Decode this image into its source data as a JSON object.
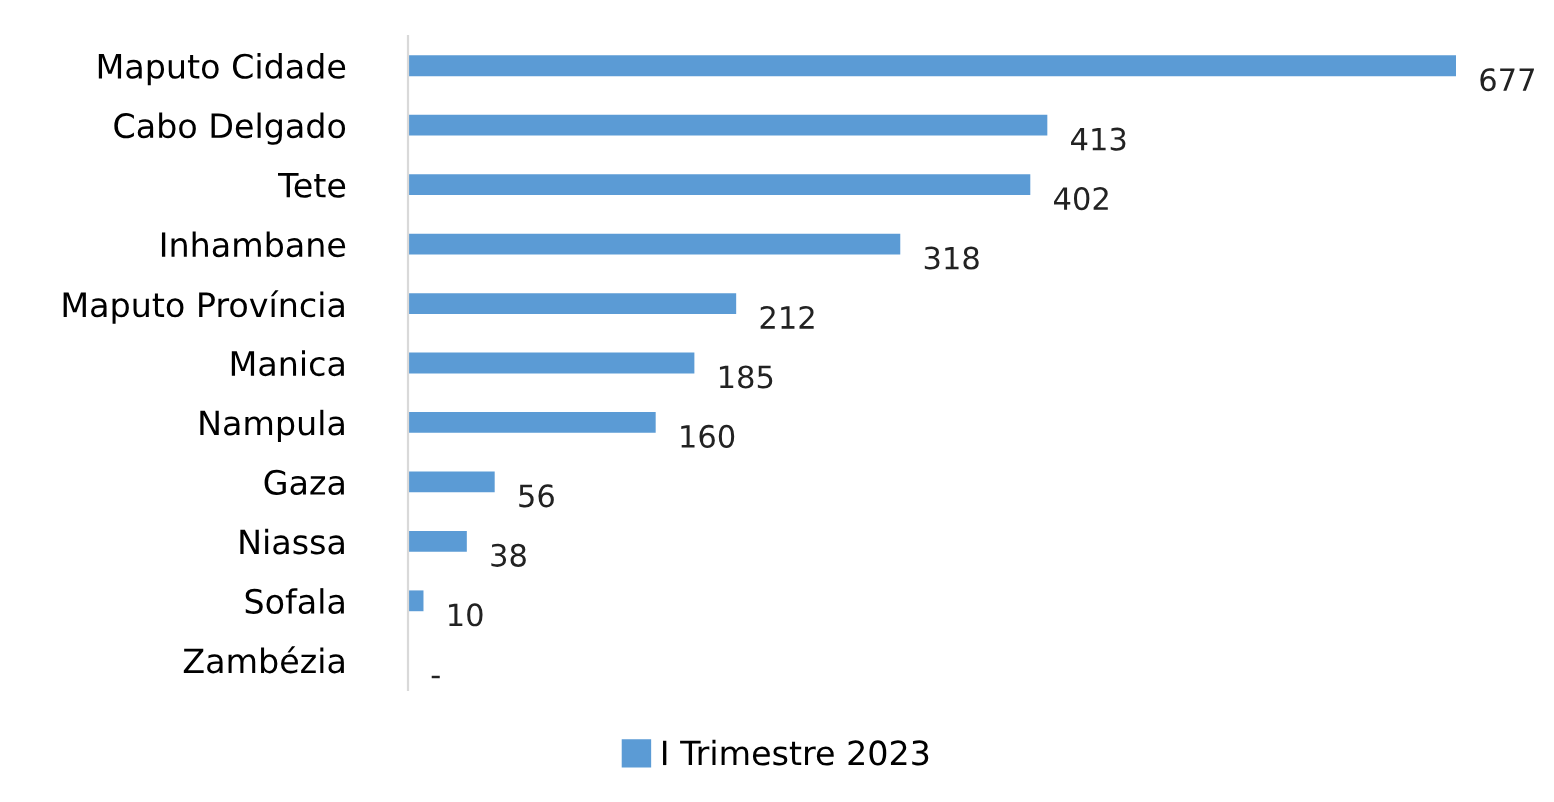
{
  "chart_data": {
    "type": "bar",
    "orientation": "horizontal",
    "categories": [
      "Maputo Cidade",
      "Cabo Delgado",
      "Tete",
      "Inhambane",
      "Maputo Província",
      "Manica",
      "Nampula",
      "Gaza",
      "Niassa",
      "Sofala",
      "Zambézia"
    ],
    "series": [
      {
        "name": "I Trimestre 2023",
        "color": "#5b9bd5",
        "values": [
          677,
          413,
          402,
          318,
          212,
          185,
          160,
          56,
          38,
          10,
          0
        ],
        "value_labels": [
          "677",
          "413",
          "402",
          "318",
          "212",
          "185",
          "160",
          "56",
          "38",
          "10",
          "-"
        ]
      }
    ],
    "legend": "bottom",
    "grid": false
  }
}
